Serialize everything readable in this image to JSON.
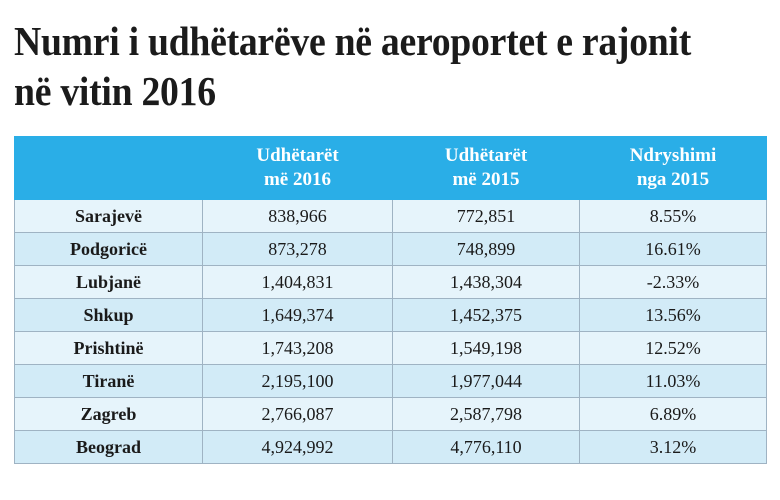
{
  "title": "Numri i udhëtarëve në aeroportet e rajonit në vitin 2016",
  "chart_data": {
    "type": "table",
    "columns": [
      {
        "line1": "",
        "line2": ""
      },
      {
        "line1": "Udhëtarët",
        "line2": "më 2016"
      },
      {
        "line1": "Udhëtarët",
        "line2": "më 2015"
      },
      {
        "line1": "Ndryshimi",
        "line2": "nga 2015"
      }
    ],
    "rows": [
      {
        "city": "Sarajevë",
        "y2016": "838,966",
        "y2015": "772,851",
        "change": "8.55%"
      },
      {
        "city": "Podgoricë",
        "y2016": "873,278",
        "y2015": "748,899",
        "change": "16.61%"
      },
      {
        "city": "Lubjanë",
        "y2016": "1,404,831",
        "y2015": "1,438,304",
        "change": "-2.33%"
      },
      {
        "city": "Shkup",
        "y2016": "1,649,374",
        "y2015": "1,452,375",
        "change": "13.56%"
      },
      {
        "city": "Prishtinë",
        "y2016": "1,743,208",
        "y2015": "1,549,198",
        "change": "12.52%"
      },
      {
        "city": "Tiranë",
        "y2016": "2,195,100",
        "y2015": "1,977,044",
        "change": "11.03%"
      },
      {
        "city": "Zagreb",
        "y2016": "2,766,087",
        "y2015": "2,587,798",
        "change": "6.89%"
      },
      {
        "city": "Beograd",
        "y2016": "4,924,992",
        "y2015": "4,776,110",
        "change": "3.12%"
      }
    ]
  },
  "colors": {
    "header_bg": "#2aaee7",
    "row_light": "#e6f4fb",
    "row_dark": "#d2ebf7"
  }
}
